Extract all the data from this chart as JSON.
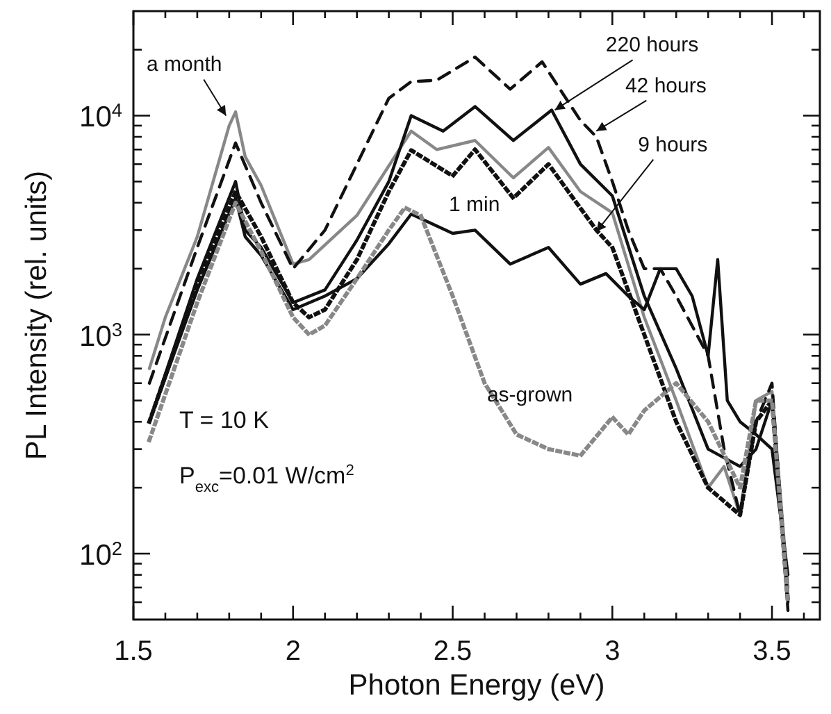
{
  "chart_data": {
    "type": "line",
    "xlabel": "Photon Energy (eV)",
    "ylabel": "PL Intensity (rel. units)",
    "log": "y",
    "grid": false,
    "xlim": [
      1.5,
      3.65
    ],
    "xticks": [
      1.5,
      {
        "value": 1.6,
        "label": null
      },
      {
        "value": 1.7,
        "label": null
      },
      {
        "value": 1.8,
        "label": null
      },
      {
        "value": 1.9,
        "label": null
      },
      2,
      {
        "value": 2.1,
        "label": null
      },
      {
        "value": 2.2,
        "label": null
      },
      {
        "value": 2.3,
        "label": null
      },
      {
        "value": 2.4,
        "label": null
      },
      2.5,
      {
        "value": 2.6,
        "label": null
      },
      {
        "value": 2.7,
        "label": null
      },
      {
        "value": 2.8,
        "label": null
      },
      {
        "value": 2.9,
        "label": null
      },
      3,
      {
        "value": 3.1,
        "label": null
      },
      {
        "value": 3.2,
        "label": null
      },
      {
        "value": 3.3,
        "label": null
      },
      {
        "value": 3.4,
        "label": null
      },
      3.5,
      {
        "value": 3.6,
        "label": null
      }
    ],
    "ylim": [
      50,
      30000
    ],
    "yticks": [
      {
        "value": 60,
        "label": null
      },
      {
        "value": 70,
        "label": null
      },
      {
        "value": 80,
        "label": null
      },
      {
        "value": 90,
        "label": null
      },
      {
        "value": 100,
        "label": "10$^{2}$"
      },
      {
        "value": 200,
        "label": null
      },
      {
        "value": 300,
        "label": null
      },
      {
        "value": 400,
        "label": null
      },
      {
        "value": 500,
        "label": null
      },
      {
        "value": 600,
        "label": null
      },
      {
        "value": 700,
        "label": null
      },
      {
        "value": 800,
        "label": null
      },
      {
        "value": 900,
        "label": null
      },
      {
        "value": 1000,
        "label": "10$^{3}$"
      },
      {
        "value": 2000,
        "label": null
      },
      {
        "value": 3000,
        "label": null
      },
      {
        "value": 4000,
        "label": null
      },
      {
        "value": 5000,
        "label": null
      },
      {
        "value": 6000,
        "label": null
      },
      {
        "value": 7000,
        "label": null
      },
      {
        "value": 8000,
        "label": null
      },
      {
        "value": 9000,
        "label": null
      },
      {
        "value": 10000,
        "label": "10$^{4}$"
      },
      {
        "value": 20000,
        "label": null
      }
    ],
    "series": [
      {
        "color": "#888888",
        "line_style": "solid",
        "x": [
          1.55,
          1.6,
          1.7,
          1.8,
          1.82,
          1.85,
          1.9,
          2.0,
          2.05,
          2.2,
          2.37,
          2.45,
          2.57,
          2.69,
          2.8,
          2.9,
          3.0,
          3.1,
          3.2,
          3.3,
          3.35,
          3.4,
          3.45,
          3.5,
          3.55
        ],
        "values": [
          700,
          1200,
          2800,
          9000,
          10400,
          6500,
          4800,
          2100,
          2200,
          3500,
          8500,
          7000,
          7700,
          5200,
          7150,
          4500,
          3600,
          1200,
          500,
          200,
          250,
          150,
          500,
          550,
          70
        ]
      },
      {
        "color": "#111111",
        "line_style": "solid",
        "x": [
          1.55,
          1.7,
          1.82,
          1.85,
          1.9,
          2.0,
          2.1,
          2.2,
          2.3,
          2.37,
          2.47,
          2.57,
          2.69,
          2.81,
          2.9,
          3.0,
          3.1,
          3.2,
          3.3,
          3.4,
          3.45,
          3.5,
          3.55
        ],
        "values": [
          400,
          1800,
          5000,
          3000,
          2500,
          1400,
          1600,
          2700,
          5000,
          10000,
          8500,
          11000,
          7700,
          10600,
          6000,
          4300,
          1500,
          700,
          300,
          250,
          300,
          500,
          60
        ]
      },
      {
        "color": "#111111",
        "line_style": "dashed",
        "x": [
          1.55,
          1.7,
          1.82,
          1.9,
          2.0,
          2.1,
          2.2,
          2.3,
          2.37,
          2.45,
          2.57,
          2.68,
          2.78,
          2.9,
          2.95,
          3.0,
          3.05,
          3.1,
          3.15,
          3.2,
          3.3,
          3.35,
          3.4,
          3.45,
          3.5,
          3.55
        ],
        "values": [
          600,
          2500,
          7500,
          4000,
          2000,
          3000,
          6000,
          12000,
          14300,
          14500,
          18500,
          13200,
          17600,
          9500,
          8000,
          5000,
          3000,
          2000,
          2000,
          1500,
          800,
          300,
          150,
          400,
          600,
          55
        ]
      },
      {
        "color": "#111111",
        "line_style": "dotted",
        "x": [
          1.55,
          1.7,
          1.82,
          1.9,
          2.0,
          2.05,
          2.1,
          2.2,
          2.3,
          2.37,
          2.5,
          2.57,
          2.69,
          2.8,
          2.95,
          3.0,
          3.1,
          3.2,
          3.3,
          3.4,
          3.45,
          3.5,
          3.55
        ],
        "values": [
          400,
          1700,
          4500,
          2800,
          1400,
          1200,
          1300,
          2200,
          4500,
          6950,
          5300,
          7000,
          4200,
          6000,
          3000,
          2500,
          1000,
          400,
          200,
          150,
          400,
          500,
          60
        ]
      },
      {
        "color": "#111111",
        "line_style": "solid",
        "x": [
          1.55,
          1.7,
          1.82,
          1.85,
          1.9,
          2.0,
          2.1,
          2.2,
          2.3,
          2.37,
          2.5,
          2.57,
          2.68,
          2.8,
          2.9,
          2.98,
          3.05,
          3.1,
          3.15,
          3.2,
          3.25,
          3.3,
          3.33,
          3.36,
          3.4,
          3.45,
          3.5,
          3.55
        ],
        "values": [
          400,
          1600,
          4200,
          2800,
          2300,
          1300,
          1500,
          1800,
          2600,
          3550,
          2900,
          3000,
          2100,
          2500,
          1700,
          1900,
          1500,
          1300,
          2000,
          2000,
          1500,
          800,
          2200,
          500,
          400,
          350,
          300,
          80
        ]
      },
      {
        "color": "#888888",
        "line_style": "dotted",
        "x": [
          1.55,
          1.7,
          1.82,
          1.9,
          2.0,
          2.05,
          2.1,
          2.2,
          2.3,
          2.35,
          2.4,
          2.5,
          2.6,
          2.7,
          2.8,
          2.9,
          3.0,
          3.05,
          3.1,
          3.2,
          3.3,
          3.4,
          3.45,
          3.5,
          3.55
        ],
        "values": [
          330,
          1400,
          4000,
          2400,
          1200,
          1000,
          1100,
          1800,
          3000,
          3800,
          3500,
          1500,
          600,
          350,
          300,
          280,
          420,
          350,
          450,
          600,
          400,
          200,
          500,
          500,
          60
        ]
      }
    ],
    "annotations": [
      {
        "text": "a month",
        "x": 1.79,
        "y": 10000
      },
      {
        "text": "220 hours",
        "x": 2.82,
        "y": 10600
      },
      {
        "text": "42 hours",
        "x": 2.95,
        "y": 8500
      },
      {
        "text": "9 hours",
        "x": 2.95,
        "y": 2950
      },
      {
        "text": "1 min",
        "x": 2.62,
        "y": 2650
      },
      {
        "text": "as-grown",
        "x": 2.72,
        "y": 330
      },
      "T = 10 K",
      "P$_{exc}$=0.01 W/cm$^{2}$"
    ]
  }
}
